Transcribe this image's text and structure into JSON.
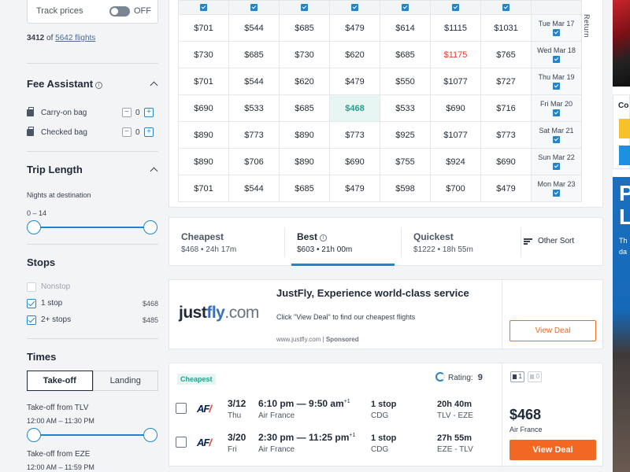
{
  "sidebar": {
    "track_prices": {
      "label": "Track prices",
      "state": "OFF"
    },
    "count": {
      "shown": "3412",
      "of": "of",
      "total": "5642 flights"
    },
    "fee_assistant": {
      "title": "Fee Assistant",
      "carry_on": {
        "label": "Carry-on bag",
        "value": "0"
      },
      "checked": {
        "label": "Checked bag",
        "value": "0"
      }
    },
    "trip_length": {
      "title": "Trip Length",
      "subtitle": "Nights at destination",
      "range": "0 – 14"
    },
    "stops": {
      "title": "Stops",
      "items": [
        {
          "label": "Nonstop",
          "price": "",
          "checked": false,
          "disabled": true
        },
        {
          "label": "1 stop",
          "price": "$468",
          "checked": true,
          "disabled": false
        },
        {
          "label": "2+ stops",
          "price": "$485",
          "checked": true,
          "disabled": false
        }
      ]
    },
    "times": {
      "title": "Times",
      "tabs": [
        "Take-off",
        "Landing"
      ],
      "takeoff_tlv": {
        "label": "Take-off from TLV",
        "range": "12:00 AM – 11:30 PM"
      },
      "takeoff_eze": {
        "label": "Take-off from EZE",
        "range": "12:00 AM – 11:59 PM"
      }
    }
  },
  "grid": {
    "return_label": "Return",
    "rows": [
      {
        "label": "Tue Mar 17",
        "prices": [
          "$701",
          "$544",
          "$685",
          "$479",
          "$614",
          "$1115",
          "$1031"
        ]
      },
      {
        "label": "Wed Mar 18",
        "prices": [
          "$730",
          "$685",
          "$730",
          "$620",
          "$685",
          "$1175",
          "$765"
        ]
      },
      {
        "label": "Thu Mar 19",
        "prices": [
          "$701",
          "$544",
          "$620",
          "$479",
          "$550",
          "$1077",
          "$727"
        ]
      },
      {
        "label": "Fri Mar 20",
        "prices": [
          "$690",
          "$533",
          "$685",
          "$468",
          "$533",
          "$690",
          "$716"
        ]
      },
      {
        "label": "Sat Mar 21",
        "prices": [
          "$890",
          "$773",
          "$890",
          "$773",
          "$925",
          "$1077",
          "$773"
        ]
      },
      {
        "label": "Sun Mar 22",
        "prices": [
          "$890",
          "$706",
          "$890",
          "$690",
          "$755",
          "$924",
          "$690"
        ]
      },
      {
        "label": "Mon Mar 23",
        "prices": [
          "$701",
          "$544",
          "$685",
          "$479",
          "$598",
          "$700",
          "$479"
        ]
      }
    ],
    "selected": {
      "row": 3,
      "col": 3
    },
    "highlight_red": {
      "row": 1,
      "col": 5
    }
  },
  "sort": {
    "tabs": [
      {
        "title": "Cheapest",
        "sub": "$468 • 24h 17m"
      },
      {
        "title": "Best",
        "sub": "$603 • 21h 00m"
      },
      {
        "title": "Quickest",
        "sub": "$1222 • 18h 55m"
      }
    ],
    "other": "Other Sort"
  },
  "ad": {
    "logo_just": "just",
    "logo_fly": "fly",
    "logo_com": ".com",
    "title": "JustFly, Experience world-class service",
    "desc": "Click \"View Deal\" to find our cheapest flights",
    "url": "www.justfly.com",
    "sponsored": "Sponsored",
    "button": "View Deal"
  },
  "flight": {
    "tag": "Cheapest",
    "rating_label": "Rating:",
    "rating_value": "9",
    "carry_count": "1",
    "checked_count": "0",
    "price": "$468",
    "airline": "Air France",
    "button": "View Deal",
    "legs": [
      {
        "date": "3/12",
        "day": "Thu",
        "time": "6:10 pm — 9:50 am",
        "plus": "+1",
        "airline": "Air France",
        "stops": "1 stop",
        "via": "CDG",
        "duration": "20h 40m",
        "route": "TLV - EZE"
      },
      {
        "date": "3/20",
        "day": "Fri",
        "time": "2:30 pm — 11:25 pm",
        "plus": "+1",
        "airline": "Air France",
        "stops": "1 stop",
        "via": "CDG",
        "duration": "27h 55m",
        "route": "EZE - TLV"
      }
    ]
  },
  "edge": {
    "card_text": "Co",
    "big_letters": "P\nL",
    "small_text": "Th\nda"
  },
  "colors": {
    "accent": "#2584c8",
    "cta": "#f26722",
    "cheapest": "#22a08c",
    "red": "#e33b2e"
  }
}
